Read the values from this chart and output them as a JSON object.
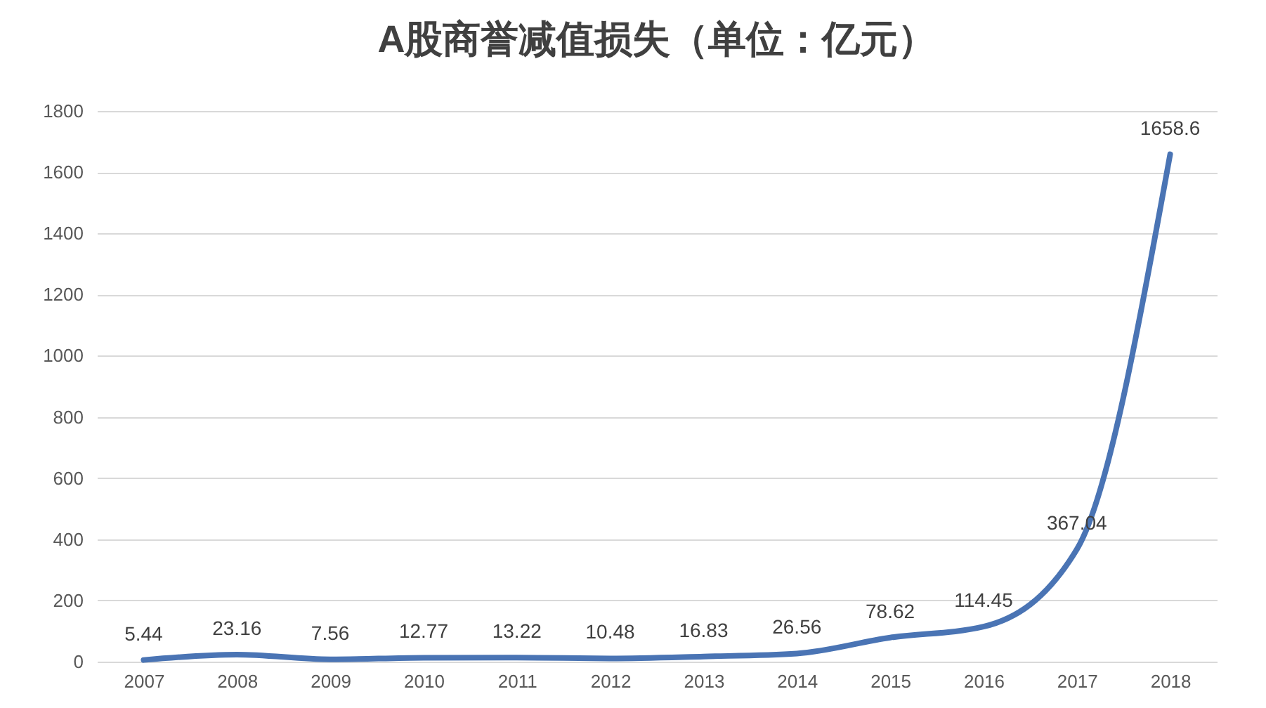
{
  "chart_data": {
    "type": "line",
    "title": "A股商誉减值损失（单位：亿元）",
    "categories": [
      "2007",
      "2008",
      "2009",
      "2010",
      "2011",
      "2012",
      "2013",
      "2014",
      "2015",
      "2016",
      "2017",
      "2018"
    ],
    "values": [
      5.44,
      23.16,
      7.56,
      12.77,
      13.22,
      10.48,
      16.83,
      26.56,
      78.62,
      114.45,
      367.04,
      1658.6
    ],
    "color": "#4a74b4",
    "ylim": [
      0,
      1800
    ],
    "yticks": [
      0,
      200,
      400,
      600,
      800,
      1000,
      1200,
      1400,
      1600,
      1800
    ],
    "grid": "y",
    "data_labels": true
  }
}
